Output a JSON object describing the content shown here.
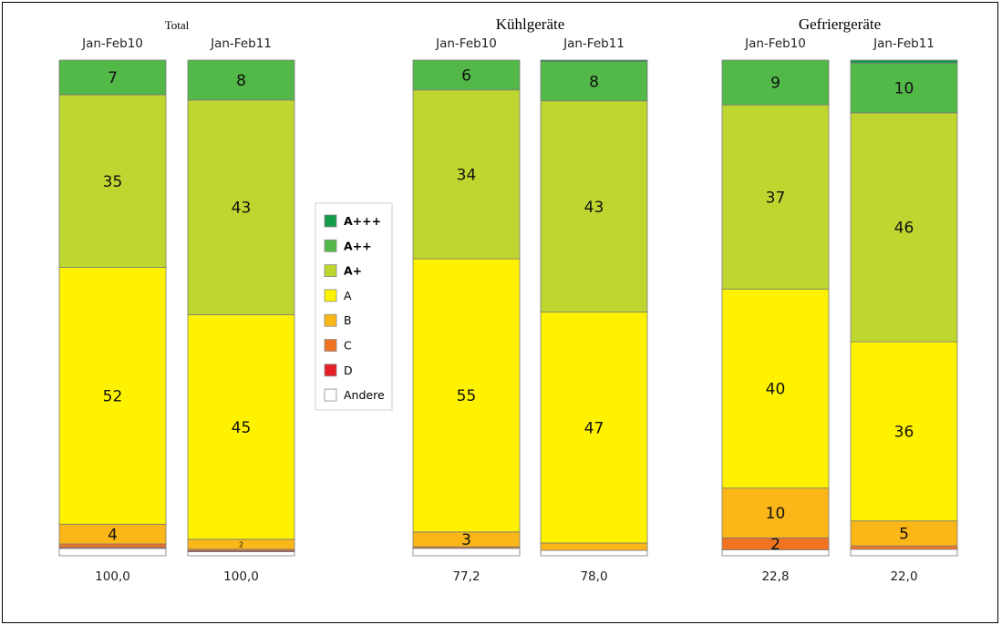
{
  "chart_data": {
    "type": "bar",
    "stacked": true,
    "normalized_percent": true,
    "colors": {
      "A+++": "#149c4a",
      "A++": "#52b848",
      "A+": "#bed62f",
      "A": "#fef200",
      "B": "#fbb717",
      "C": "#f07322",
      "D": "#e31e24",
      "Andere": "#ffffff"
    },
    "legend": {
      "placement": "center",
      "items": [
        {
          "key": "A+++",
          "label": "A+++",
          "bold_letter": true
        },
        {
          "key": "A++",
          "label": "A++",
          "bold_letter": true
        },
        {
          "key": "A+",
          "label": "A+",
          "bold_letter": true
        },
        {
          "key": "A",
          "label": "A",
          "bold_letter": false
        },
        {
          "key": "B",
          "label": "B",
          "bold_letter": false
        },
        {
          "key": "C",
          "label": "C",
          "bold_letter": false
        },
        {
          "key": "D",
          "label": "D",
          "bold_letter": false
        },
        {
          "key": "Andere",
          "label": "Andere",
          "bold_letter": false
        }
      ]
    },
    "groups": [
      {
        "title": "Total",
        "bars": [
          {
            "period": "Jan-Feb10",
            "total": "100,0",
            "segments": {
              "Andere": 1.5,
              "D": 0.2,
              "C": 0.7,
              "B": 4,
              "A": 52,
              "A+": 35,
              "A++": 7,
              "A+++": 0
            },
            "labels": {
              "B": "4",
              "A": "52",
              "A+": "35",
              "A++": "7"
            }
          },
          {
            "period": "Jan-Feb11",
            "total": "100,0",
            "segments": {
              "Andere": 0.8,
              "D": 0.2,
              "C": 0.3,
              "B": 2,
              "A": 45,
              "A+": 43,
              "A++": 8,
              "A+++": 0
            },
            "labels": {
              "B": "2",
              "A": "45",
              "A+": "43",
              "A++": "8"
            }
          }
        ]
      },
      {
        "title": "Kühlgeräte",
        "bars": [
          {
            "period": "Jan-Feb10",
            "total": "77,2",
            "segments": {
              "Andere": 1.5,
              "D": 0,
              "C": 0.3,
              "B": 3,
              "A": 55,
              "A+": 34,
              "A++": 6,
              "A+++": 0
            },
            "labels": {
              "B": "3",
              "A": "55",
              "A+": "34",
              "A++": "6"
            }
          },
          {
            "period": "Jan-Feb11",
            "total": "78,0",
            "segments": {
              "Andere": 1.1,
              "D": 0,
              "C": 0,
              "B": 1.5,
              "A": 47,
              "A+": 43,
              "A++": 8,
              "A+++": 0.3
            },
            "labels": {
              "A": "47",
              "A+": "43",
              "A++": "8"
            }
          }
        ]
      },
      {
        "title": "Gefriergeräte",
        "bars": [
          {
            "period": "Jan-Feb10",
            "total": "22,8",
            "segments": {
              "Andere": 1.2,
              "D": 0,
              "C": 2.4,
              "B": 10,
              "A": 40,
              "A+": 37,
              "A++": 9,
              "A+++": 0
            },
            "labels": {
              "C": "2",
              "B": "10",
              "A": "40",
              "A+": "37",
              "A++": "9"
            }
          },
          {
            "period": "Jan-Feb11",
            "total": "22,0",
            "segments": {
              "Andere": 1.3,
              "D": 0,
              "C": 0.7,
              "B": 5,
              "A": 36,
              "A+": 46,
              "A++": 10,
              "A+++": 0.6
            },
            "labels": {
              "B": "5",
              "A": "36",
              "A+": "46",
              "A++": "10"
            }
          }
        ]
      }
    ]
  }
}
